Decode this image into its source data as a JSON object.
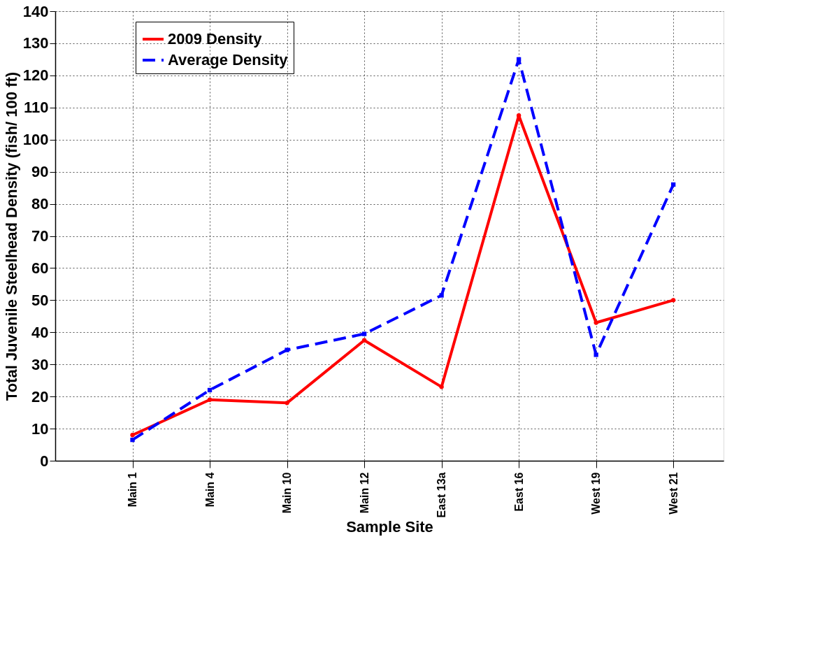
{
  "chart_data": {
    "type": "line",
    "xlabel": "Sample Site",
    "ylabel": "Total Juvenile Steelhead Density (fish/ 100 ft)",
    "categories": [
      "Main 1",
      "Main 4",
      "Main 10",
      "Main 12",
      "East 13a",
      "East 16",
      "West 19",
      "West 21"
    ],
    "series": [
      {
        "name": "2009 Density",
        "color": "#ff0000",
        "line_style": "solid",
        "marker": "circle",
        "values": [
          8,
          19,
          18,
          37.5,
          23,
          107.5,
          43,
          50
        ]
      },
      {
        "name": "Average Density",
        "color": "#0000ff",
        "line_style": "dashed",
        "marker": "square",
        "values": [
          6.5,
          22,
          34.5,
          39.5,
          51.5,
          125,
          33,
          86
        ]
      }
    ],
    "ylim": [
      0,
      140
    ],
    "yticks": [
      0,
      10,
      20,
      30,
      40,
      50,
      60,
      70,
      80,
      90,
      100,
      110,
      120,
      130,
      140
    ],
    "grid": true,
    "legend": "top left"
  }
}
